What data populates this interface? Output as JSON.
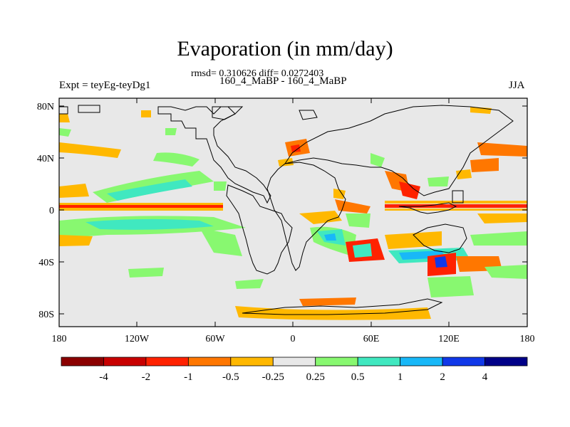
{
  "title": "Evaporation (in mm/day)",
  "subtitle_stats": "rmsd= 0.310626 diff= 0.0272403",
  "subtitle_runs": "160_4_MaBP - 160_4_MaBP",
  "left_label": "Expt = teyEg-teyDg1",
  "right_label": "JJA",
  "lat_ticks": [
    "80N",
    "40N",
    "0",
    "40S",
    "80S"
  ],
  "lon_ticks": [
    "180",
    "120W",
    "60W",
    "0",
    "60E",
    "120E",
    "180"
  ],
  "colorbar": {
    "labels": [
      "-4",
      "-2",
      "-1",
      "-0.5",
      "-0.25",
      "0.25",
      "0.5",
      "1",
      "2",
      "4"
    ],
    "colors": [
      "#8b0000",
      "#c80000",
      "#ff2200",
      "#ff7700",
      "#ffb800",
      "#e8e8e8",
      "#88f870",
      "#40e8c0",
      "#18b8f8",
      "#1038e8",
      "#000088"
    ]
  },
  "colors": {
    "land_ocean_background": "#e8e8e8",
    "coastline": "#000000"
  }
}
